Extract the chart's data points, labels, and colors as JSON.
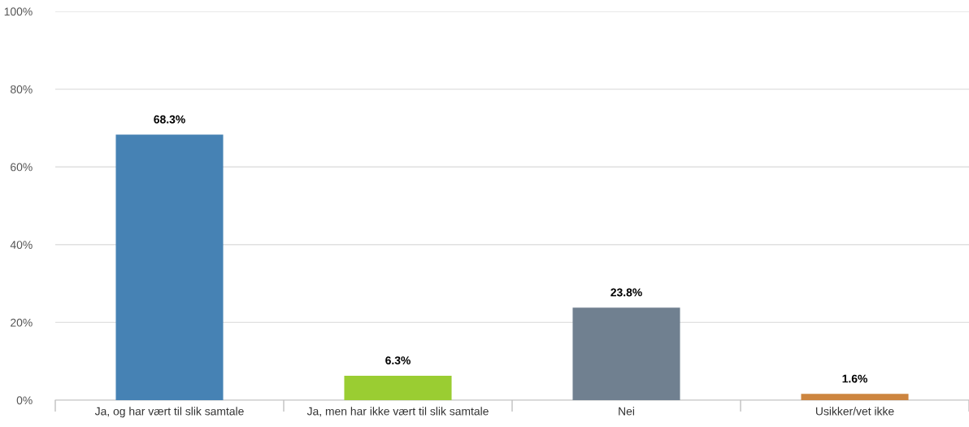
{
  "chart_data": {
    "type": "bar",
    "categories": [
      "Ja, og har vært til slik samtale",
      "Ja, men har ikke vært til slik samtale",
      "Nei",
      "Usikker/vet ikke"
    ],
    "values": [
      68.3,
      6.3,
      23.8,
      1.6
    ],
    "colors": [
      "#4682b4",
      "#9acd32",
      "#708090",
      "#cd853f"
    ],
    "value_labels": [
      "68.3%",
      "6.3%",
      "23.8%",
      "1.6%"
    ],
    "ylim": [
      0,
      100
    ],
    "yticks": [
      {
        "value": 0,
        "label": "0%"
      },
      {
        "value": 20,
        "label": "20%"
      },
      {
        "value": 40,
        "label": "40%"
      },
      {
        "value": 60,
        "label": "60%"
      },
      {
        "value": 80,
        "label": "80%"
      },
      {
        "value": 100,
        "label": "100%"
      }
    ],
    "grid": "y",
    "legend": false
  }
}
